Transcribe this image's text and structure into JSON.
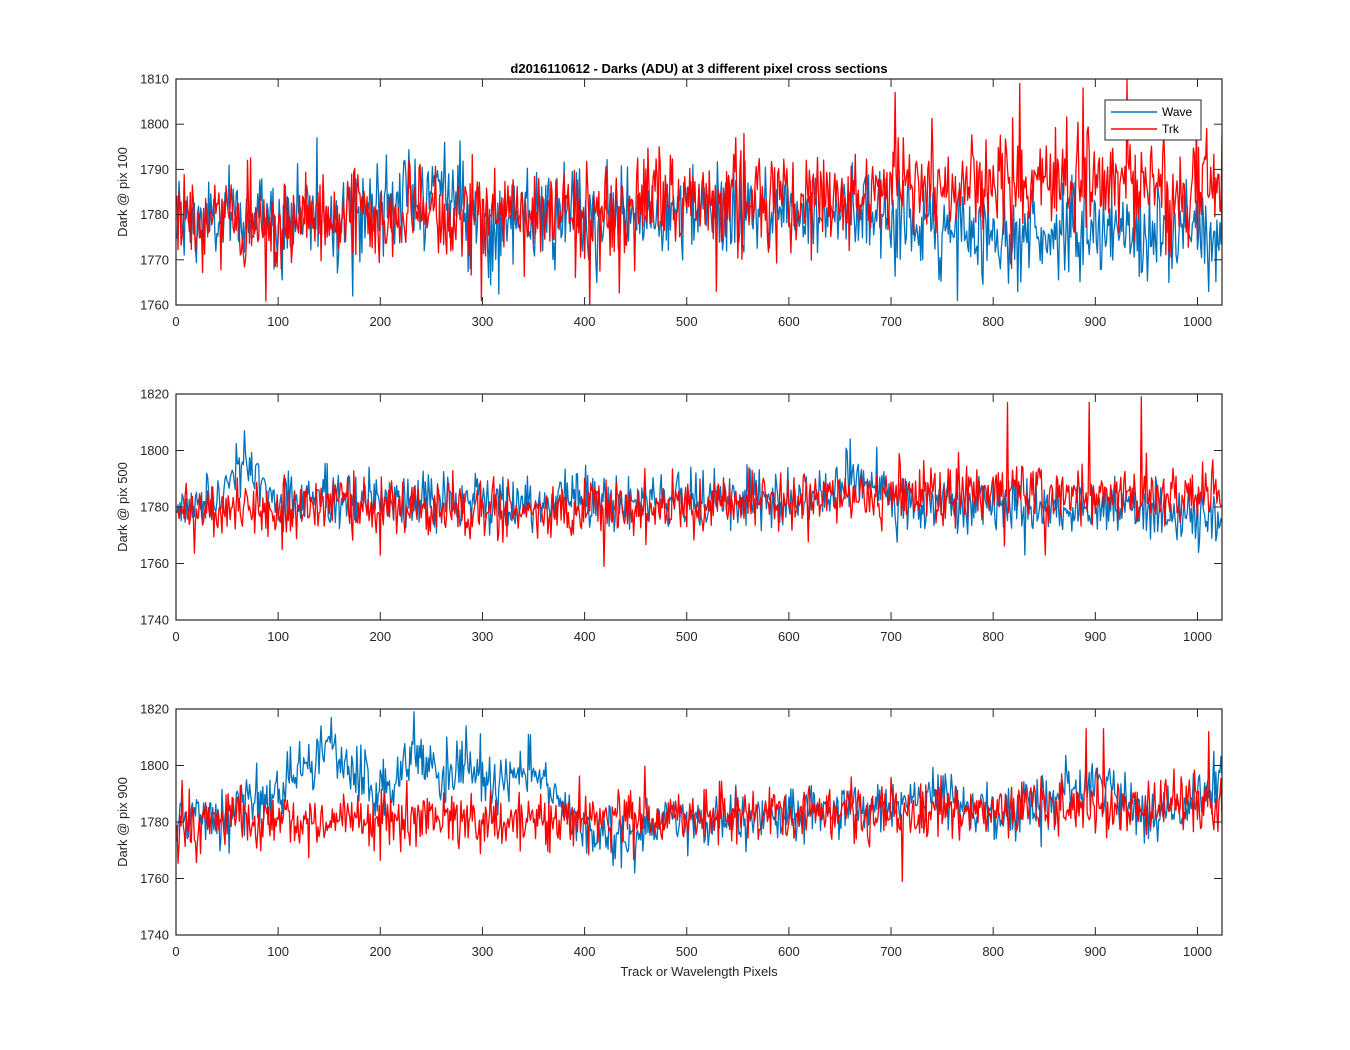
{
  "chart_data": [
    {
      "type": "line",
      "title": "d2016110612 - Darks (ADU) at 3 different pixel cross sections",
      "xlabel": "",
      "ylabel": "Dark @ pix 100",
      "xlim": [
        0,
        1024
      ],
      "ylim": [
        1760,
        1810
      ],
      "xticks": [
        0,
        100,
        200,
        300,
        400,
        500,
        600,
        700,
        800,
        900,
        1000
      ],
      "yticks": [
        1760,
        1770,
        1780,
        1790,
        1800,
        1810
      ],
      "legend": {
        "location": "top-right",
        "entries": [
          "Wave",
          "Trk"
        ]
      },
      "series": [
        {
          "name": "Wave",
          "color": "#0072BD",
          "n_points": 1024,
          "mean": 1779,
          "std": 5.0,
          "anchors": [
            [
              0,
              1778
            ],
            [
              150,
              1780
            ],
            [
              260,
              1786
            ],
            [
              300,
              1778
            ],
            [
              650,
              1782
            ],
            [
              770,
              1776
            ],
            [
              1024,
              1776
            ]
          ],
          "extremes": [
            [
              137,
              1797
            ],
            [
              262,
              1796
            ],
            [
              172,
              1762
            ],
            [
              764,
              1761
            ],
            [
              1010,
              1763
            ]
          ]
        },
        {
          "name": "Trk",
          "color": "#FF0000",
          "n_points": 1024,
          "mean": 1781,
          "std": 5.5,
          "anchors": [
            [
              0,
              1778
            ],
            [
              300,
              1780
            ],
            [
              600,
              1783
            ],
            [
              800,
              1787
            ],
            [
              1024,
              1786
            ]
          ],
          "extremes": [
            [
              825,
              1809
            ],
            [
              930,
              1810
            ],
            [
              887,
              1808
            ],
            [
              703,
              1807
            ],
            [
              298,
              1761
            ]
          ]
        }
      ]
    },
    {
      "type": "line",
      "xlabel": "",
      "ylabel": "Dark @ pix 500",
      "xlim": [
        0,
        1024
      ],
      "ylim": [
        1740,
        1820
      ],
      "xticks": [
        0,
        100,
        200,
        300,
        400,
        500,
        600,
        700,
        800,
        900,
        1000
      ],
      "yticks": [
        1740,
        1760,
        1780,
        1800,
        1820
      ],
      "series": [
        {
          "name": "Wave",
          "color": "#0072BD",
          "n_points": 1024,
          "mean": 1780,
          "std": 5.0,
          "anchors": [
            [
              0,
              1780
            ],
            [
              40,
              1783
            ],
            [
              65,
              1797
            ],
            [
              95,
              1782
            ],
            [
              640,
              1783
            ],
            [
              660,
              1792
            ],
            [
              700,
              1781
            ],
            [
              1024,
              1778
            ]
          ],
          "extremes": [
            [
              66,
              1807
            ],
            [
              659,
              1804
            ],
            [
              830,
              1763
            ]
          ]
        },
        {
          "name": "Trk",
          "color": "#FF0000",
          "n_points": 1024,
          "mean": 1781,
          "std": 5.0,
          "anchors": [
            [
              0,
              1779
            ],
            [
              400,
              1779
            ],
            [
              600,
              1782
            ],
            [
              800,
              1785
            ],
            [
              1024,
              1784
            ]
          ],
          "extremes": [
            [
              813,
              1817
            ],
            [
              893,
              1817
            ],
            [
              944,
              1819
            ],
            [
              418,
              1759
            ],
            [
              850,
              1763
            ]
          ]
        }
      ]
    },
    {
      "type": "line",
      "xlabel": "Track or Wavelength Pixels",
      "ylabel": "Dark @ pix 900",
      "xlim": [
        0,
        1024
      ],
      "ylim": [
        1740,
        1820
      ],
      "xticks": [
        0,
        100,
        200,
        300,
        400,
        500,
        600,
        700,
        800,
        900,
        1000
      ],
      "yticks": [
        1740,
        1760,
        1780,
        1800,
        1820
      ],
      "series": [
        {
          "name": "Wave",
          "color": "#0072BD",
          "n_points": 1024,
          "mean": 1786,
          "std": 5.0,
          "anchors": [
            [
              0,
              1780
            ],
            [
              50,
              1783
            ],
            [
              100,
              1789
            ],
            [
              130,
              1800
            ],
            [
              150,
              1807
            ],
            [
              180,
              1796
            ],
            [
              200,
              1788
            ],
            [
              232,
              1803
            ],
            [
              260,
              1795
            ],
            [
              285,
              1801
            ],
            [
              310,
              1791
            ],
            [
              340,
              1797
            ],
            [
              360,
              1794
            ],
            [
              385,
              1782
            ],
            [
              430,
              1774
            ],
            [
              470,
              1779
            ],
            [
              600,
              1782
            ],
            [
              750,
              1789
            ],
            [
              800,
              1782
            ],
            [
              900,
              1794
            ],
            [
              950,
              1782
            ],
            [
              1000,
              1788
            ],
            [
              1024,
              1798
            ]
          ],
          "extremes": [
            [
              151,
              1817
            ],
            [
              232,
              1819
            ],
            [
              283,
              1814
            ],
            [
              344,
              1811
            ],
            [
              448,
              1762
            ]
          ]
        },
        {
          "name": "Trk",
          "color": "#FF0000",
          "n_points": 1024,
          "mean": 1782,
          "std": 5.0,
          "anchors": [
            [
              0,
              1780
            ],
            [
              500,
              1782
            ],
            [
              1024,
              1786
            ]
          ],
          "extremes": [
            [
              890,
              1813
            ],
            [
              907,
              1813
            ],
            [
              710,
              1759
            ],
            [
              1010,
              1812
            ]
          ]
        }
      ]
    }
  ]
}
